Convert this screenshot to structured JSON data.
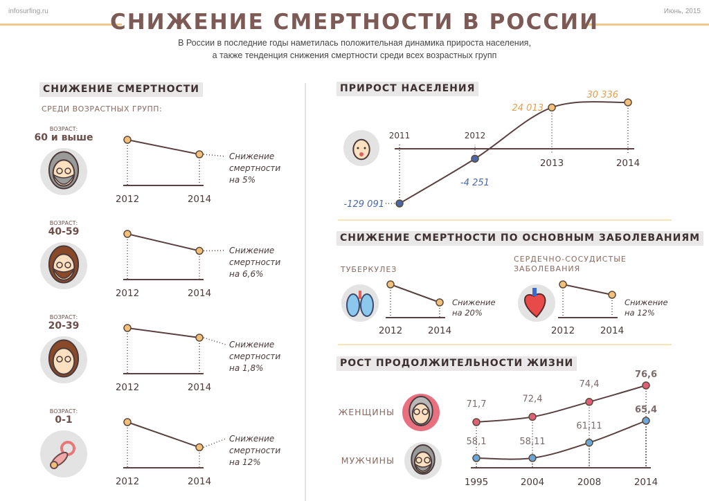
{
  "header": {
    "site": "infosurfing.ru",
    "date": "Июнь, 2015",
    "title": "СНИЖЕНИЕ СМЕРТНОСТИ В РОССИИ",
    "subtitle_lines": [
      "В России в последние годы наметилась положительная динамика прироста населения,",
      "а также  тенденция снижения смертности среди всех возрастных групп"
    ]
  },
  "sections": {
    "mortality": "СНИЖЕНИЕ СМЕРТНОСТИ",
    "mortality_sub": "СРЕДИ ВОЗРАСТНЫХ ГРУПП:",
    "population": "ПРИРОСТ НАСЕЛЕНИЯ",
    "diseases": "СНИЖЕНИЕ СМЕРТНОСТИ ПО ОСНОВНЫМ ЗАБОЛЕВАНИЯМ",
    "life": "РОСТ ПРОДОЛЖИТЕЛЬНОСТИ ЖИЗНИ"
  },
  "colors": {
    "title": "#7d5a55",
    "accent_gold": "#f0c98a",
    "point_orange": "#f2c07a",
    "negative_blue": "#4a68a8",
    "positive_orange": "#e0a050",
    "women_pink": "#e05f78",
    "men_blue": "#6aa6d8",
    "line": "#5a4040"
  },
  "chart_data": [
    {
      "type": "line",
      "group": "age",
      "icon": "old-man-avatar-icon",
      "age_caption": "ВОЗРАСТ:",
      "age": "60 и выше",
      "x": [
        "2012",
        "2014"
      ],
      "decline_pct": 5,
      "note": [
        "Снижение",
        "смертности",
        "на 5%"
      ]
    },
    {
      "type": "line",
      "group": "age",
      "icon": "bearded-man-avatar-icon",
      "age_caption": "ВОЗРАСТ:",
      "age": "40-59",
      "x": [
        "2012",
        "2014"
      ],
      "decline_pct": 6.6,
      "note": [
        "Снижение",
        "смертности",
        "на 6,6%"
      ]
    },
    {
      "type": "line",
      "group": "age",
      "icon": "young-man-avatar-icon",
      "age_caption": "ВОЗРАСТ:",
      "age": "20-39",
      "x": [
        "2012",
        "2014"
      ],
      "decline_pct": 1.8,
      "note": [
        "Снижение",
        "смертности",
        "на 1,8%"
      ]
    },
    {
      "type": "line",
      "group": "age",
      "icon": "pacifier-icon",
      "age_caption": "ВОЗРАСТ:",
      "age": "0-1",
      "x": [
        "2012",
        "2014"
      ],
      "decline_pct": 12,
      "note": [
        "Снижение",
        "смертности",
        "на 12%"
      ]
    },
    {
      "type": "line",
      "group": "population",
      "icon": "baby-avatar-icon",
      "x": [
        "2011",
        "2012",
        "2013",
        "2014"
      ],
      "values": [
        -129091,
        -4251,
        24013,
        30336
      ],
      "labels": [
        "-129 091",
        "-4 251",
        "24 013",
        "30 336"
      ]
    },
    {
      "type": "line",
      "group": "disease",
      "icon": "lungs-icon",
      "title": [
        "ТУБЕРКУЛЕЗ"
      ],
      "x": [
        "2012",
        "2014"
      ],
      "decline_pct": 20,
      "note": [
        "Снижение",
        "на 20%"
      ]
    },
    {
      "type": "line",
      "group": "disease",
      "icon": "heart-icon",
      "title": [
        "СЕРДЕЧНО-СОСУДИСТЫЕ",
        "ЗАБОЛЕВАНИЯ"
      ],
      "x": [
        "2012",
        "2014"
      ],
      "decline_pct": 12,
      "note": [
        "Снижение",
        "на 12%"
      ]
    },
    {
      "type": "line",
      "group": "life",
      "x": [
        "1995",
        "2004",
        "2008",
        "2014"
      ],
      "series": [
        {
          "name": "ЖЕНЩИНЫ",
          "icon": "old-woman-avatar-icon",
          "values": [
            71.7,
            72.4,
            74.4,
            76.6
          ],
          "labels": [
            "71,7",
            "72,4",
            "74,4",
            "76,6"
          ]
        },
        {
          "name": "МУЖЧИНЫ",
          "icon": "old-man-avatar-icon",
          "values": [
            58.1,
            58.11,
            61.11,
            65.4
          ],
          "labels": [
            "58,1",
            "58,11",
            "61,11",
            "65,4"
          ]
        }
      ]
    }
  ]
}
